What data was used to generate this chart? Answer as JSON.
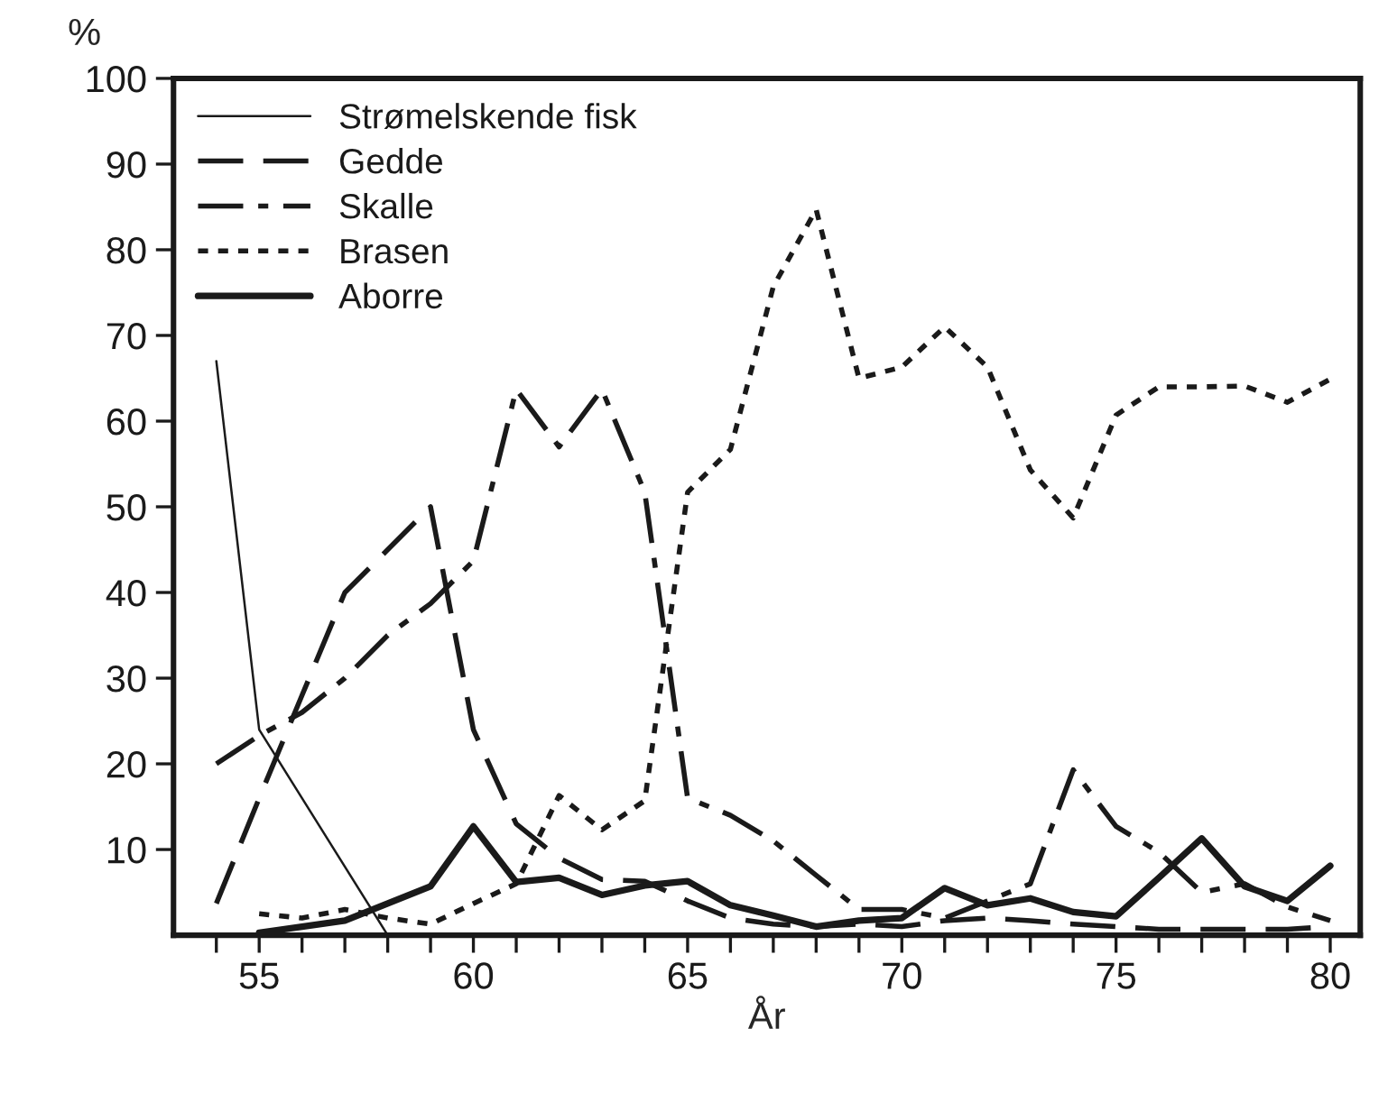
{
  "chart_data": {
    "type": "line",
    "xlabel": "År",
    "ylabel": "%",
    "xlim": [
      53,
      80.7
    ],
    "ylim": [
      0,
      100
    ],
    "xticks": [
      {
        "value": 54,
        "label": null
      },
      55,
      {
        "value": 56,
        "label": null
      },
      {
        "value": 57,
        "label": null
      },
      {
        "value": 58,
        "label": null
      },
      {
        "value": 59,
        "label": null
      },
      60,
      {
        "value": 61,
        "label": null
      },
      {
        "value": 62,
        "label": null
      },
      {
        "value": 63,
        "label": null
      },
      {
        "value": 64,
        "label": null
      },
      65,
      {
        "value": 66,
        "label": null
      },
      {
        "value": 67,
        "label": null
      },
      {
        "value": 68,
        "label": null
      },
      {
        "value": 69,
        "label": null
      },
      70,
      {
        "value": 71,
        "label": null
      },
      {
        "value": 72,
        "label": null
      },
      {
        "value": 73,
        "label": null
      },
      {
        "value": 74,
        "label": null
      },
      75,
      {
        "value": 76,
        "label": null
      },
      {
        "value": 77,
        "label": null
      },
      {
        "value": 78,
        "label": null
      },
      {
        "value": 79,
        "label": null
      },
      80
    ],
    "yticks": [
      10,
      20,
      30,
      40,
      50,
      60,
      70,
      80,
      90,
      100
    ],
    "grid": false,
    "legend": "top left",
    "marker": "none",
    "series": [
      {
        "name": "Strømelskende fisk",
        "color": "#1a1a1a",
        "line_style": "solid",
        "x": [
          54,
          55,
          58
        ],
        "values": [
          67,
          24,
          0
        ]
      },
      {
        "name": "Gedde",
        "color": "#1a1a1a",
        "line_style": "dashed",
        "x": [
          54,
          55,
          56,
          57,
          58,
          59,
          60,
          61,
          62,
          63,
          64,
          65,
          66,
          67,
          68,
          69,
          70,
          71,
          72,
          73,
          74,
          75,
          76,
          77,
          78,
          79,
          80
        ],
        "values": [
          3.7,
          16,
          28,
          40,
          45,
          50,
          24,
          13,
          9,
          6.5,
          6.3,
          4,
          2,
          1.3,
          1,
          1.3,
          1,
          1.7,
          2,
          1.7,
          1.3,
          1,
          0.7,
          0.7,
          0.7,
          0.7,
          1
        ]
      },
      {
        "name": "Skalle",
        "color": "#1a1a1a",
        "line_style": "dashdot",
        "x": [
          54,
          55,
          56,
          57,
          58,
          59,
          60,
          61,
          62,
          63,
          64,
          65,
          66,
          67,
          68,
          69,
          70,
          71,
          72,
          73,
          74,
          75,
          76,
          77,
          78,
          79,
          80
        ],
        "values": [
          20,
          23.3,
          26,
          30,
          35,
          38.7,
          43.7,
          63.7,
          57,
          63.7,
          51.7,
          16,
          14,
          11,
          7,
          3,
          3,
          2,
          4,
          6,
          19.3,
          12.7,
          9.7,
          5,
          6,
          3.3,
          1.7
        ]
      },
      {
        "name": "Brasen",
        "color": "#1a1a1a",
        "line_style": "dotted",
        "x": [
          55,
          56,
          57,
          58,
          59,
          60,
          61,
          62,
          63,
          64,
          65,
          66,
          67,
          68,
          69,
          70,
          71,
          72,
          73,
          74,
          75,
          76,
          77,
          78,
          79,
          80
        ],
        "values": [
          2.5,
          2,
          3,
          2,
          1.3,
          3.7,
          6,
          16.3,
          12.3,
          15.7,
          51.7,
          56.7,
          75.7,
          84.7,
          65,
          66.3,
          71,
          66.3,
          54.3,
          48.7,
          60.7,
          64,
          64,
          64.1,
          62.2,
          64.9
        ]
      },
      {
        "name": "Aborre",
        "color": "#1a1a1a",
        "line_style": "solid",
        "x": [
          55,
          56,
          57,
          58,
          59,
          60,
          61,
          62,
          63,
          64,
          65,
          66,
          67,
          68,
          69,
          70,
          71,
          72,
          73,
          74,
          75,
          76,
          77,
          78,
          79,
          80
        ],
        "values": [
          0.3,
          1,
          1.7,
          3.7,
          5.7,
          12.7,
          6.2,
          6.7,
          4.7,
          5.8,
          6.3,
          3.5,
          2.3,
          1,
          1.7,
          2,
          5.5,
          3.5,
          4.3,
          2.7,
          2.2,
          6.7,
          11.3,
          5.7,
          4,
          8.1
        ]
      }
    ]
  }
}
